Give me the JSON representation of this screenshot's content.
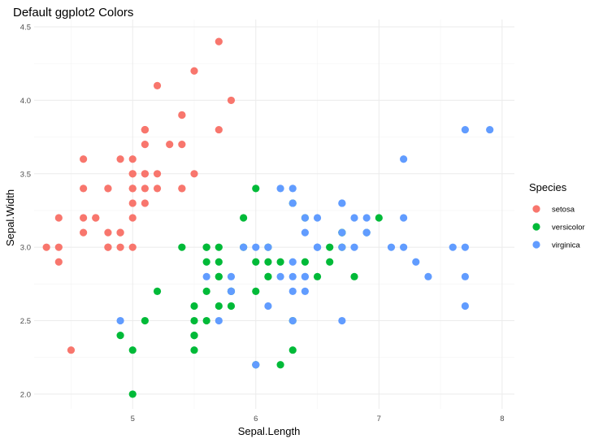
{
  "chart_data": {
    "type": "scatter",
    "title": "Default ggplot2 Colors",
    "xlabel": "Sepal.Length",
    "ylabel": "Sepal.Width",
    "xlim": [
      4.2,
      8.1
    ],
    "ylim": [
      1.9,
      4.55
    ],
    "x_ticks": [
      5,
      6,
      7,
      8
    ],
    "y_ticks": [
      2.0,
      2.5,
      3.0,
      3.5,
      4.0,
      4.5
    ],
    "x_tick_labels": [
      "5",
      "6",
      "7",
      "8"
    ],
    "y_tick_labels": [
      "2.0",
      "2.5",
      "3.0",
      "3.5",
      "4.0",
      "4.5"
    ],
    "grid": true,
    "legend": {
      "title": "Species",
      "position": "right"
    },
    "series": [
      {
        "name": "setosa",
        "color": "#F8766D",
        "points": [
          [
            5.1,
            3.5
          ],
          [
            4.9,
            3.0
          ],
          [
            4.7,
            3.2
          ],
          [
            4.6,
            3.1
          ],
          [
            5.0,
            3.6
          ],
          [
            5.4,
            3.9
          ],
          [
            4.6,
            3.4
          ],
          [
            5.0,
            3.4
          ],
          [
            4.4,
            2.9
          ],
          [
            4.9,
            3.1
          ],
          [
            5.4,
            3.7
          ],
          [
            4.8,
            3.4
          ],
          [
            4.8,
            3.0
          ],
          [
            4.3,
            3.0
          ],
          [
            5.8,
            4.0
          ],
          [
            5.7,
            4.4
          ],
          [
            5.4,
            3.9
          ],
          [
            5.1,
            3.5
          ],
          [
            5.7,
            3.8
          ],
          [
            5.1,
            3.8
          ],
          [
            5.4,
            3.4
          ],
          [
            5.1,
            3.7
          ],
          [
            4.6,
            3.6
          ],
          [
            5.1,
            3.3
          ],
          [
            4.8,
            3.4
          ],
          [
            5.0,
            3.0
          ],
          [
            5.0,
            3.4
          ],
          [
            5.2,
            3.5
          ],
          [
            5.2,
            3.4
          ],
          [
            4.7,
            3.2
          ],
          [
            4.8,
            3.1
          ],
          [
            5.4,
            3.4
          ],
          [
            5.2,
            4.1
          ],
          [
            5.5,
            4.2
          ],
          [
            4.9,
            3.1
          ],
          [
            5.0,
            3.2
          ],
          [
            5.5,
            3.5
          ],
          [
            4.9,
            3.6
          ],
          [
            4.4,
            3.0
          ],
          [
            5.1,
            3.4
          ],
          [
            5.0,
            3.5
          ],
          [
            4.5,
            2.3
          ],
          [
            4.4,
            3.2
          ],
          [
            5.0,
            3.5
          ],
          [
            5.1,
            3.8
          ],
          [
            4.8,
            3.0
          ],
          [
            5.1,
            3.8
          ],
          [
            4.6,
            3.2
          ],
          [
            5.3,
            3.7
          ],
          [
            5.0,
            3.3
          ]
        ]
      },
      {
        "name": "versicolor",
        "color": "#00BA38",
        "points": [
          [
            7.0,
            3.2
          ],
          [
            6.4,
            3.2
          ],
          [
            6.9,
            3.1
          ],
          [
            5.5,
            2.3
          ],
          [
            6.5,
            2.8
          ],
          [
            5.7,
            2.8
          ],
          [
            6.3,
            3.3
          ],
          [
            4.9,
            2.4
          ],
          [
            6.6,
            2.9
          ],
          [
            5.2,
            2.7
          ],
          [
            5.0,
            2.0
          ],
          [
            5.9,
            3.0
          ],
          [
            6.0,
            2.2
          ],
          [
            6.1,
            2.9
          ],
          [
            5.6,
            2.9
          ],
          [
            6.7,
            3.1
          ],
          [
            5.6,
            3.0
          ],
          [
            5.8,
            2.7
          ],
          [
            6.2,
            2.2
          ],
          [
            5.6,
            2.5
          ],
          [
            5.9,
            3.2
          ],
          [
            6.1,
            2.8
          ],
          [
            6.3,
            2.5
          ],
          [
            6.1,
            2.8
          ],
          [
            6.4,
            2.9
          ],
          [
            6.6,
            3.0
          ],
          [
            6.8,
            2.8
          ],
          [
            6.7,
            3.0
          ],
          [
            6.0,
            2.9
          ],
          [
            5.7,
            2.6
          ],
          [
            5.5,
            2.4
          ],
          [
            5.5,
            2.4
          ],
          [
            5.8,
            2.7
          ],
          [
            6.0,
            2.7
          ],
          [
            5.4,
            3.0
          ],
          [
            6.0,
            3.4
          ],
          [
            6.7,
            3.1
          ],
          [
            6.3,
            2.3
          ],
          [
            5.6,
            3.0
          ],
          [
            5.5,
            2.5
          ],
          [
            5.5,
            2.6
          ],
          [
            6.1,
            3.0
          ],
          [
            5.8,
            2.6
          ],
          [
            5.0,
            2.3
          ],
          [
            5.6,
            2.7
          ],
          [
            5.7,
            3.0
          ],
          [
            5.7,
            2.9
          ],
          [
            6.2,
            2.9
          ],
          [
            5.1,
            2.5
          ],
          [
            5.7,
            2.8
          ]
        ]
      },
      {
        "name": "virginica",
        "color": "#619CFF",
        "points": [
          [
            6.3,
            3.3
          ],
          [
            5.8,
            2.7
          ],
          [
            7.1,
            3.0
          ],
          [
            6.3,
            2.9
          ],
          [
            6.5,
            3.0
          ],
          [
            7.6,
            3.0
          ],
          [
            4.9,
            2.5
          ],
          [
            7.3,
            2.9
          ],
          [
            6.7,
            2.5
          ],
          [
            7.2,
            3.6
          ],
          [
            6.5,
            3.2
          ],
          [
            6.4,
            2.7
          ],
          [
            6.8,
            3.0
          ],
          [
            5.7,
            2.5
          ],
          [
            5.8,
            2.8
          ],
          [
            6.4,
            3.2
          ],
          [
            6.5,
            3.0
          ],
          [
            7.7,
            3.8
          ],
          [
            7.7,
            2.6
          ],
          [
            6.0,
            2.2
          ],
          [
            6.9,
            3.2
          ],
          [
            5.6,
            2.8
          ],
          [
            7.7,
            2.8
          ],
          [
            6.3,
            2.7
          ],
          [
            6.7,
            3.3
          ],
          [
            7.2,
            3.2
          ],
          [
            6.2,
            2.8
          ],
          [
            6.1,
            3.0
          ],
          [
            6.4,
            2.8
          ],
          [
            7.2,
            3.0
          ],
          [
            7.4,
            2.8
          ],
          [
            7.9,
            3.8
          ],
          [
            6.4,
            2.8
          ],
          [
            6.3,
            2.8
          ],
          [
            6.1,
            2.6
          ],
          [
            7.7,
            3.0
          ],
          [
            6.3,
            3.4
          ],
          [
            6.4,
            3.1
          ],
          [
            6.0,
            3.0
          ],
          [
            6.9,
            3.1
          ],
          [
            6.7,
            3.1
          ],
          [
            6.9,
            3.1
          ],
          [
            5.8,
            2.7
          ],
          [
            6.8,
            3.2
          ],
          [
            6.7,
            3.3
          ],
          [
            6.7,
            3.0
          ],
          [
            6.3,
            2.5
          ],
          [
            6.5,
            3.0
          ],
          [
            6.2,
            3.4
          ],
          [
            5.9,
            3.0
          ]
        ]
      }
    ]
  }
}
